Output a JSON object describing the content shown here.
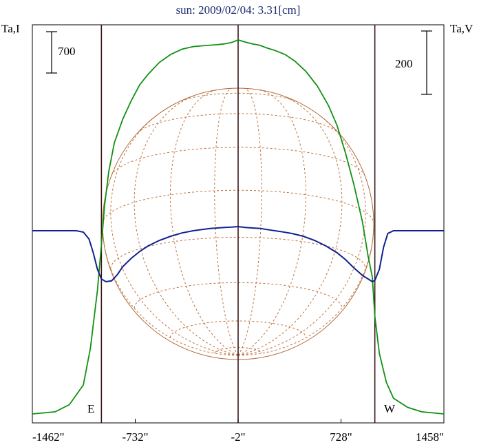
{
  "chart_data": {
    "type": "line",
    "title": "sun: 2009/02/04: 3.31[cm]",
    "left_axis_label": "Ta,I",
    "right_axis_label": "Ta,V",
    "left_scale_bar": "700",
    "right_scale_bar": "200",
    "limb_labels": {
      "east": "E",
      "west": "W"
    },
    "x_ticks": [
      {
        "value": -1462,
        "label": "-1462\""
      },
      {
        "value": -732,
        "label": "-732\""
      },
      {
        "value": -2,
        "label": "-2\""
      },
      {
        "value": 728,
        "label": "728\""
      },
      {
        "value": 1458,
        "label": "1458\""
      }
    ],
    "xlim": [
      -1462,
      1458
    ],
    "vertical_markers_arcsec": [
      -972,
      -2,
      968
    ],
    "series": [
      {
        "key": "I",
        "color": "#109010",
        "x": [
          -1462,
          -1300,
          -1200,
          -1100,
          -1050,
          -1000,
          -972,
          -950,
          -920,
          -880,
          -820,
          -760,
          -700,
          -640,
          -560,
          -480,
          -400,
          -320,
          -250,
          -200,
          -150,
          -100,
          -50,
          -2,
          50,
          100,
          150,
          200,
          260,
          330,
          400,
          480,
          560,
          640,
          700,
          760,
          820,
          880,
          920,
          950,
          968,
          1000,
          1050,
          1100,
          1200,
          1300,
          1458
        ],
        "y": [
          0,
          8,
          35,
          110,
          250,
          470,
          640,
          790,
          920,
          1030,
          1120,
          1190,
          1250,
          1290,
          1335,
          1365,
          1385,
          1395,
          1398,
          1400,
          1402,
          1405,
          1410,
          1420,
          1412,
          1405,
          1400,
          1390,
          1380,
          1365,
          1340,
          1300,
          1245,
          1170,
          1095,
          990,
          870,
          730,
          600,
          520,
          370,
          230,
          120,
          60,
          25,
          8,
          0
        ]
      },
      {
        "key": "V",
        "color": "#102090",
        "x": [
          -1462,
          -1300,
          -1150,
          -1100,
          -1060,
          -1030,
          -1000,
          -972,
          -940,
          -900,
          -860,
          -820,
          -760,
          -700,
          -640,
          -560,
          -480,
          -400,
          -320,
          -250,
          -200,
          -150,
          -100,
          -50,
          -2,
          50,
          100,
          160,
          220,
          300,
          380,
          460,
          540,
          620,
          700,
          760,
          820,
          880,
          920,
          950,
          968,
          1000,
          1030,
          1060,
          1100,
          1200,
          1300,
          1458
        ],
        "y": [
          0,
          0,
          0,
          -5,
          -30,
          -80,
          -140,
          -175,
          -185,
          -182,
          -160,
          -130,
          -100,
          -75,
          -55,
          -35,
          -20,
          -8,
          0,
          5,
          8,
          10,
          12,
          13,
          15,
          12,
          10,
          8,
          3,
          -3,
          -10,
          -20,
          -35,
          -55,
          -80,
          -105,
          -135,
          -162,
          -175,
          -185,
          -180,
          -140,
          -60,
          -10,
          0,
          0,
          0,
          0
        ]
      }
    ]
  }
}
